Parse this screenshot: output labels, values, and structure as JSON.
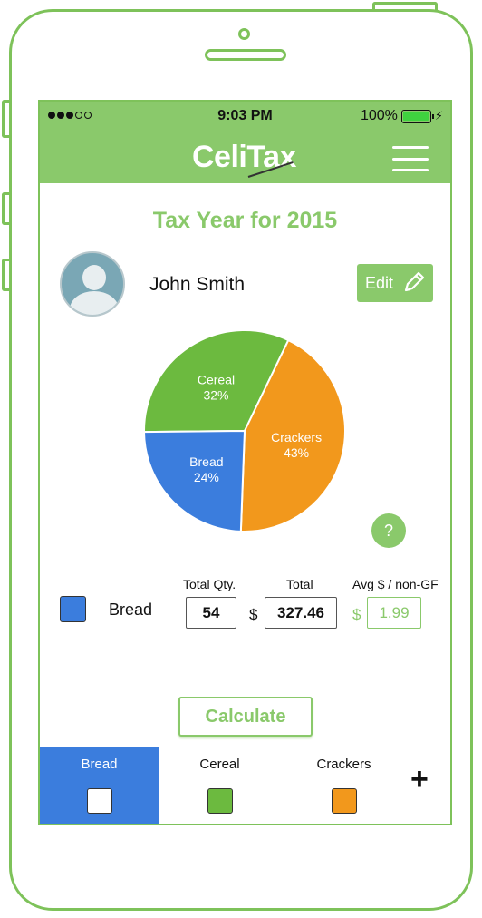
{
  "status_bar": {
    "time": "9:03 PM",
    "battery": "100%"
  },
  "app": {
    "logo": "CeliTax"
  },
  "page": {
    "title": "Tax Year for 2015"
  },
  "profile": {
    "name": "John Smith",
    "edit_label": "Edit"
  },
  "chart_data": {
    "type": "pie",
    "slices": [
      {
        "label": "Cereal",
        "percent_label": "32%",
        "value": 32,
        "color": "#6cba3f"
      },
      {
        "label": "Crackers",
        "percent_label": "43%",
        "value": 43,
        "color": "#f2981c"
      },
      {
        "label": "Bread",
        "percent_label": "24%",
        "value": 24,
        "color": "#3b7ddd"
      }
    ]
  },
  "help": {
    "label": "?"
  },
  "selected": {
    "name": "Bread",
    "color": "#3b7ddd",
    "qty_label": "Total Qty.",
    "qty": "54",
    "total_label": "Total",
    "currency": "$",
    "total": "327.46",
    "avg_label": "Avg $ / non-GF",
    "avg": "1.99"
  },
  "calculate_label": "Calculate",
  "tabs": [
    {
      "label": "Bread",
      "color": "#ffffff",
      "active": true
    },
    {
      "label": "Cereal",
      "color": "#6cba3f",
      "active": false
    },
    {
      "label": "Crackers",
      "color": "#f2981c",
      "active": false
    }
  ],
  "add_label": "+"
}
